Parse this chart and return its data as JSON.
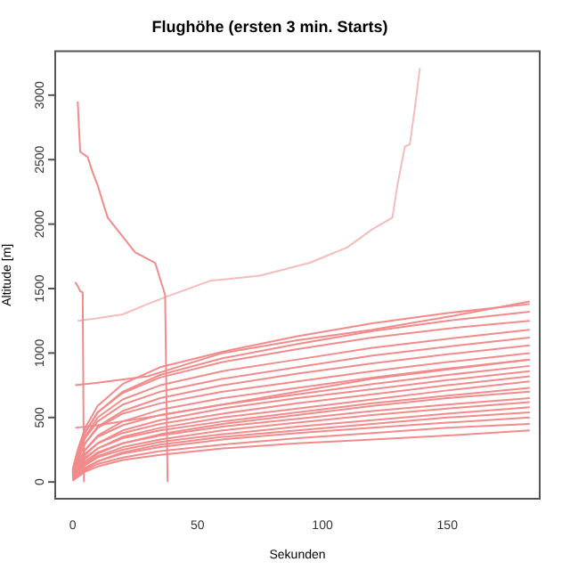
{
  "chart_data": {
    "type": "line",
    "title": "Flughöhe (ersten 3 min. Starts)",
    "xlabel": "Sekunden",
    "ylabel": "Altitude [m]",
    "x": [
      0,
      2,
      5,
      10,
      20,
      35,
      60,
      90,
      120,
      150,
      183
    ],
    "xlim": [
      -7,
      187
    ],
    "xticks": [
      0,
      50,
      100,
      150
    ],
    "ylim": [
      -130,
      3340
    ],
    "yticks": [
      0,
      500,
      1000,
      1500,
      2000,
      2500,
      3000
    ],
    "grid": false,
    "legend": false,
    "marker": "none",
    "line_style": "solid",
    "series": [
      {
        "color": "#f28b8b",
        "values": [
          10,
          40,
          80,
          120,
          170,
          210,
          260,
          300,
          330,
          360,
          400
        ]
      },
      {
        "color": "#f28b8b",
        "values": [
          20,
          40,
          90,
          140,
          190,
          240,
          290,
          340,
          380,
          420,
          450
        ]
      },
      {
        "color": "#f28b8b",
        "values": [
          20,
          60,
          110,
          160,
          220,
          270,
          330,
          380,
          420,
          460,
          500
        ]
      },
      {
        "color": "#f28b8b",
        "values": [
          10,
          50,
          100,
          160,
          230,
          290,
          350,
          400,
          450,
          500,
          540
        ]
      },
      {
        "color": "#f28b8b",
        "values": [
          20,
          70,
          130,
          190,
          250,
          310,
          370,
          430,
          480,
          530,
          580
        ]
      },
      {
        "color": "#f28b8b",
        "values": [
          30,
          80,
          140,
          200,
          270,
          330,
          400,
          460,
          520,
          570,
          620
        ]
      },
      {
        "color": "#f28b8b",
        "values": [
          30,
          90,
          160,
          230,
          300,
          360,
          430,
          490,
          550,
          600,
          650
        ]
      },
      {
        "color": "#f28b8b",
        "values": [
          20,
          80,
          150,
          220,
          300,
          370,
          450,
          520,
          590,
          650,
          700
        ]
      },
      {
        "color": "#f28b8b",
        "values": [
          40,
          110,
          190,
          260,
          340,
          400,
          470,
          540,
          610,
          670,
          730
        ]
      },
      {
        "color": "#f28b8b",
        "values": [
          30,
          100,
          180,
          260,
          350,
          420,
          500,
          570,
          640,
          710,
          780
        ]
      },
      {
        "color": "#f28b8b",
        "values": [
          50,
          130,
          220,
          300,
          380,
          450,
          530,
          610,
          680,
          750,
          820
        ]
      },
      {
        "color": "#f28b8b",
        "values": [
          40,
          120,
          210,
          300,
          400,
          480,
          570,
          650,
          720,
          790,
          860
        ]
      },
      {
        "color": "#f28b8b",
        "values": [
          60,
          150,
          250,
          350,
          440,
          520,
          600,
          680,
          760,
          830,
          900
        ]
      },
      {
        "color": "#f28b8b",
        "values": [
          50,
          140,
          250,
          360,
          470,
          560,
          650,
          730,
          810,
          880,
          950
        ]
      },
      {
        "color": "#f28b8b",
        "values": [
          70,
          180,
          300,
          420,
          530,
          610,
          700,
          780,
          860,
          930,
          1000
        ]
      },
      {
        "color": "#f28b8b",
        "values": [
          60,
          170,
          300,
          430,
          550,
          650,
          750,
          840,
          920,
          990,
          1060
        ]
      },
      {
        "color": "#f28b8b",
        "values": [
          80,
          200,
          340,
          470,
          600,
          700,
          800,
          890,
          980,
          1050,
          1120
        ]
      },
      {
        "color": "#f28b8b",
        "values": [
          70,
          200,
          350,
          500,
          640,
          750,
          860,
          950,
          1040,
          1110,
          1180
        ]
      },
      {
        "color": "#f28b8b",
        "values": [
          90,
          230,
          390,
          540,
          690,
          810,
          930,
          1030,
          1120,
          1190,
          1250
        ]
      },
      {
        "color": "#f28b8b",
        "values": [
          80,
          220,
          380,
          540,
          700,
          830,
          960,
          1070,
          1170,
          1250,
          1320
        ]
      },
      {
        "color": "#f28b8b",
        "values": [
          100,
          250,
          420,
          590,
          760,
          890,
          1010,
          1130,
          1230,
          1310,
          1380
        ]
      },
      {
        "color": "#f28b8b",
        "x": [
          1,
          10,
          30,
          60,
          90,
          120,
          150,
          183
        ],
        "values": [
          750,
          770,
          820,
          1000,
          1100,
          1180,
          1280,
          1400
        ]
      },
      {
        "color": "#f28b8b",
        "x": [
          1,
          10,
          30,
          60,
          120,
          183
        ],
        "values": [
          420,
          440,
          500,
          600,
          800,
          950
        ]
      },
      {
        "color": "#f28b8b",
        "x": [
          1,
          2,
          3,
          4,
          4.5
        ],
        "values": [
          1550,
          1520,
          1480,
          1470,
          0
        ]
      },
      {
        "color": "#f28b8b",
        "x": [
          2,
          3,
          6,
          8,
          10,
          14,
          25,
          33,
          37,
          38
        ],
        "values": [
          2950,
          2560,
          2520,
          2400,
          2300,
          2050,
          1780,
          1700,
          1450,
          0
        ]
      },
      {
        "color": "#f4bcbc",
        "x": [
          2,
          10,
          20,
          30,
          38,
          55,
          75,
          95,
          110,
          120,
          128,
          130,
          133,
          135,
          137,
          139
        ],
        "values": [
          1250,
          1270,
          1300,
          1380,
          1440,
          1560,
          1600,
          1700,
          1820,
          1960,
          2050,
          2300,
          2600,
          2620,
          2900,
          3210
        ]
      }
    ]
  }
}
